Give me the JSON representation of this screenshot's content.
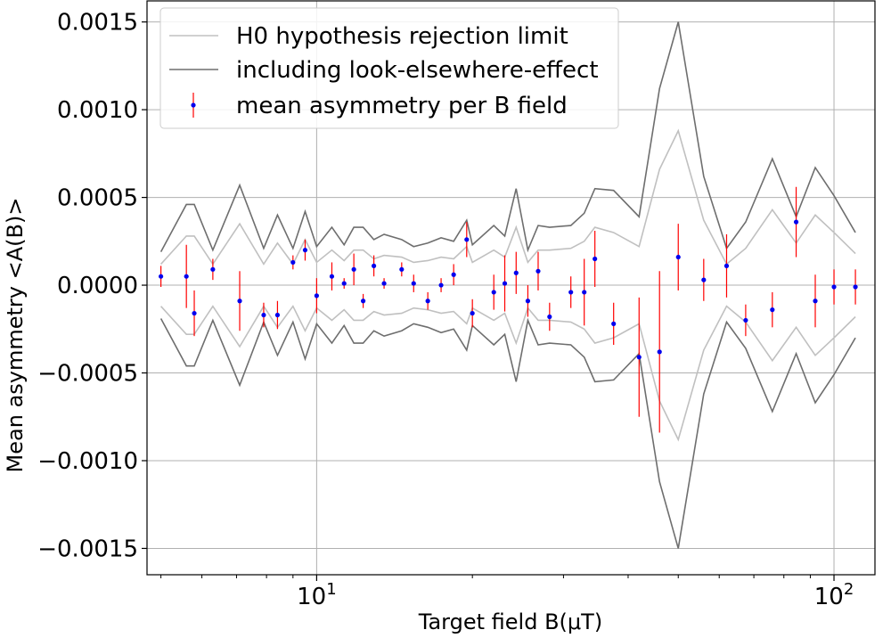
{
  "chart_data": {
    "type": "scatter",
    "xscale": "log",
    "xlim": [
      4.7,
      120
    ],
    "ylim": [
      -0.00165,
      0.00162
    ],
    "grid": true,
    "xlabel": "Target field B(μT)",
    "ylabel": "Mean asymmetry <A(B)>",
    "y_ticks": [
      {
        "value": 0.0015,
        "label": "0.0015"
      },
      {
        "value": 0.001,
        "label": "0.0010"
      },
      {
        "value": 0.0005,
        "label": "0.0005"
      },
      {
        "value": 0.0,
        "label": "0.0000"
      },
      {
        "value": -0.0005,
        "label": "−0.0005"
      },
      {
        "value": -0.001,
        "label": "−0.0010"
      },
      {
        "value": -0.0015,
        "label": "−0.0015"
      }
    ],
    "x_ticks": [
      {
        "value": 10,
        "base": "10",
        "exp": "1"
      },
      {
        "value": 100,
        "base": "10",
        "exp": "2"
      }
    ],
    "legend": {
      "placement": "top-left",
      "entries": [
        {
          "label": "H0 hypothesis rejection limit",
          "color": "#c0c0c0",
          "kind": "line"
        },
        {
          "label": "including look-elsewhere-effect",
          "color": "#6e6e6e",
          "kind": "line"
        },
        {
          "label": "mean asymmetry per B field",
          "color": "#0000ee",
          "err_color": "#ff0000",
          "kind": "errorbar"
        }
      ]
    },
    "x": [
      5.0,
      5.6,
      5.8,
      6.3,
      7.1,
      7.9,
      8.4,
      9.0,
      9.5,
      10.0,
      10.7,
      11.3,
      11.8,
      12.3,
      12.9,
      13.5,
      14.6,
      15.4,
      16.4,
      17.4,
      18.4,
      19.5,
      20.0,
      22.0,
      23.1,
      24.3,
      25.6,
      26.8,
      28.2,
      31.0,
      32.9,
      34.5,
      37.5,
      42.0,
      46.0,
      50.0,
      56.0,
      62.0,
      67.5,
      76.0,
      84.5,
      92.0,
      100.0,
      110.0
    ],
    "series": [
      {
        "kind": "errorbar",
        "color": "#0000ee",
        "err_color": "#ff0000",
        "y": [
          5e-05,
          5e-05,
          -0.00016,
          9e-05,
          -9e-05,
          -0.00017,
          -0.00017,
          0.00013,
          0.0002,
          -6e-05,
          5e-05,
          1e-05,
          9e-05,
          -9e-05,
          0.00011,
          1e-05,
          9e-05,
          1e-05,
          -9e-05,
          0.0,
          6e-05,
          0.00026,
          -0.00016,
          -4e-05,
          1e-05,
          7e-05,
          -9e-05,
          8e-05,
          -0.00018,
          -4e-05,
          -4e-05,
          0.00015,
          -0.00022,
          -0.00041,
          -0.00038,
          0.00016,
          3e-05,
          0.00011,
          -0.0002,
          -0.00014,
          0.00036,
          -9e-05,
          -1e-05,
          -1e-05
        ],
        "err": [
          6e-05,
          0.00018,
          0.00013,
          6e-05,
          0.00017,
          7e-05,
          8e-05,
          4e-05,
          6e-05,
          0.0001,
          8e-05,
          3e-05,
          9e-05,
          4e-05,
          6e-05,
          3e-05,
          4e-05,
          5e-05,
          5e-05,
          4e-05,
          6e-05,
          0.0001,
          8e-05,
          0.0001,
          0.00016,
          0.00012,
          9e-05,
          0.00011,
          8e-05,
          9e-05,
          0.00019,
          0.00016,
          0.00012,
          0.00034,
          0.00046,
          0.00019,
          0.00012,
          0.00018,
          9e-05,
          0.0001,
          0.0002,
          0.00015,
          0.0001,
          0.0001
        ]
      },
      {
        "kind": "band",
        "name": "H0 hypothesis rejection limit",
        "color": "#c0c0c0",
        "upper": [
          0.00012,
          0.00028,
          0.00028,
          0.00012,
          0.00035,
          0.00012,
          0.00024,
          0.00012,
          0.00026,
          0.00013,
          0.0002,
          0.00014,
          0.0002,
          0.0002,
          0.00015,
          0.00017,
          0.00016,
          0.00013,
          0.00014,
          0.00016,
          0.00015,
          0.00022,
          0.00013,
          0.0002,
          0.00016,
          0.00033,
          0.00013,
          0.0002,
          0.0002,
          0.00021,
          0.00025,
          0.00033,
          0.0003,
          0.00022,
          0.00066,
          0.00088,
          0.00037,
          0.00012,
          0.00021,
          0.00043,
          0.00024,
          0.0004,
          0.0003,
          0.00018
        ],
        "lower": [
          -0.00012,
          -0.00028,
          -0.00028,
          -0.00012,
          -0.00035,
          -0.00012,
          -0.00024,
          -0.00012,
          -0.00026,
          -0.00013,
          -0.0002,
          -0.00014,
          -0.0002,
          -0.0002,
          -0.00015,
          -0.00017,
          -0.00016,
          -0.00013,
          -0.00014,
          -0.00016,
          -0.00015,
          -0.00022,
          -0.00013,
          -0.0002,
          -0.00016,
          -0.00033,
          -0.00013,
          -0.0002,
          -0.0002,
          -0.00021,
          -0.00025,
          -0.00033,
          -0.0003,
          -0.00022,
          -0.00066,
          -0.00088,
          -0.00037,
          -0.00012,
          -0.00021,
          -0.00043,
          -0.00024,
          -0.0004,
          -0.0003,
          -0.00018
        ]
      },
      {
        "kind": "band",
        "name": "including look-elsewhere-effect",
        "color": "#6e6e6e",
        "upper": [
          0.00019,
          0.00046,
          0.00046,
          0.0002,
          0.00057,
          0.00021,
          0.0004,
          0.00021,
          0.00042,
          0.00022,
          0.00033,
          0.00023,
          0.00033,
          0.00033,
          0.00026,
          0.00029,
          0.00026,
          0.00022,
          0.00024,
          0.00027,
          0.00025,
          0.00037,
          0.00023,
          0.00034,
          0.00028,
          0.00055,
          0.0002,
          0.00034,
          0.00033,
          0.00034,
          0.00041,
          0.00055,
          0.00054,
          0.00039,
          0.00112,
          0.0015,
          0.00062,
          0.00021,
          0.00036,
          0.00072,
          0.00039,
          0.00067,
          0.00051,
          0.0003
        ],
        "lower": [
          -0.00019,
          -0.00046,
          -0.00046,
          -0.0002,
          -0.00057,
          -0.00021,
          -0.0004,
          -0.00021,
          -0.00042,
          -0.00022,
          -0.00033,
          -0.00023,
          -0.00033,
          -0.00033,
          -0.00026,
          -0.00029,
          -0.00026,
          -0.00022,
          -0.00024,
          -0.00027,
          -0.00025,
          -0.00037,
          -0.00023,
          -0.00034,
          -0.00028,
          -0.00055,
          -0.0002,
          -0.00034,
          -0.00033,
          -0.00034,
          -0.00041,
          -0.00055,
          -0.00054,
          -0.00039,
          -0.00112,
          -0.0015,
          -0.00062,
          -0.00021,
          -0.00036,
          -0.00072,
          -0.00039,
          -0.00067,
          -0.00051,
          -0.0003
        ]
      }
    ]
  }
}
